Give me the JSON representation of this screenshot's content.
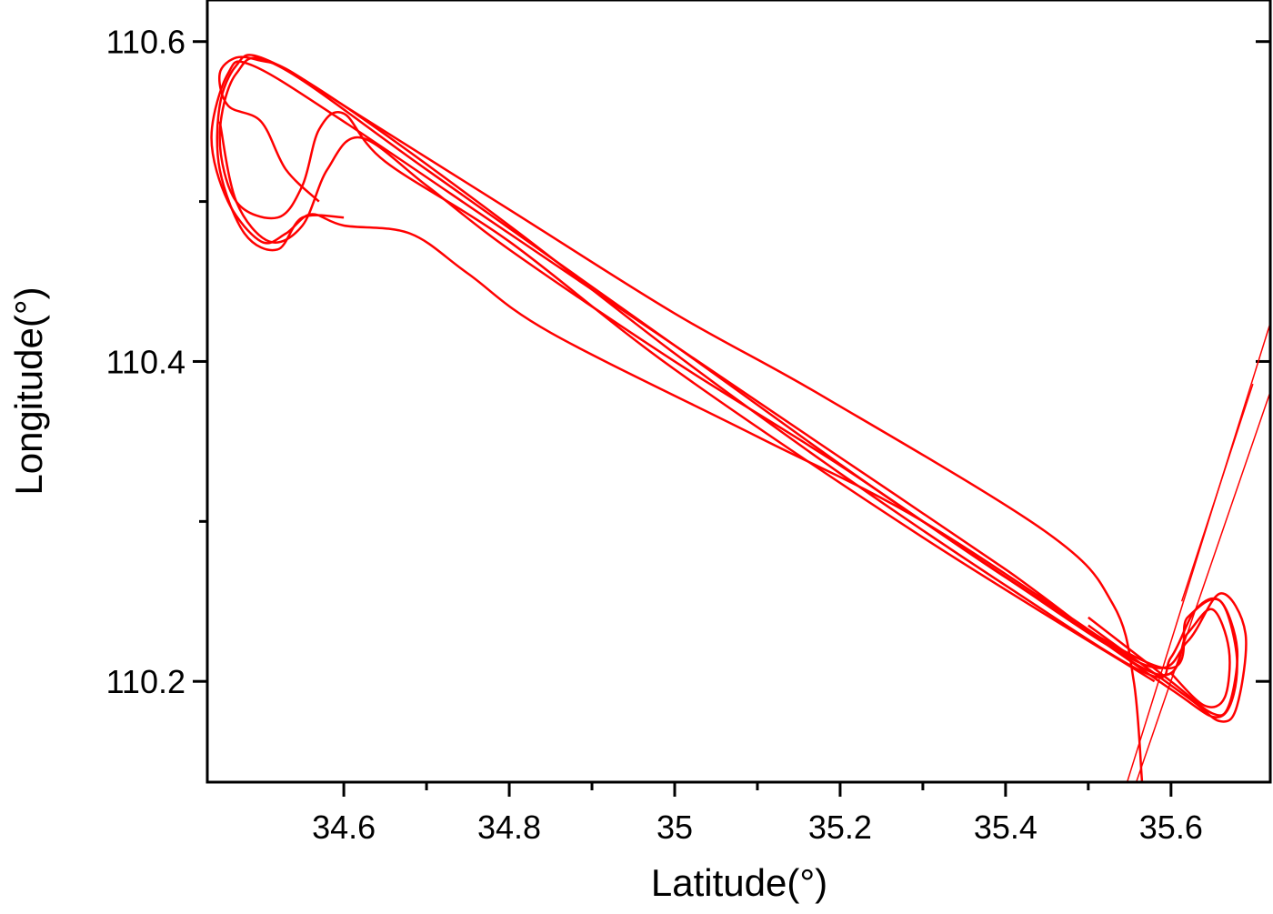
{
  "chart_data": {
    "type": "line",
    "x_label": "Latitude(°)",
    "y_label": "Longitude(°)",
    "xlim": [
      34.435,
      35.72
    ],
    "ylim": [
      110.137,
      110.626
    ],
    "xticks": [
      34.6,
      34.8,
      35.0,
      35.2,
      35.4,
      35.6
    ],
    "yticks": [
      110.2,
      110.4,
      110.6
    ],
    "color": "#ff0000",
    "series": [
      {
        "x": [
          34.57,
          34.53,
          34.5,
          34.46,
          34.45,
          34.47,
          34.5,
          34.53,
          34.6,
          34.8,
          35.0,
          35.18,
          35.45,
          35.53,
          35.555,
          35.565
        ],
        "values": [
          110.5,
          110.52,
          110.55,
          110.56,
          110.58,
          110.59,
          110.588,
          110.583,
          110.56,
          110.495,
          110.43,
          110.378,
          110.293,
          110.248,
          110.2,
          110.137
        ]
      },
      {
        "x": [
          34.6,
          34.55,
          34.52,
          34.48,
          34.45,
          34.45,
          34.47,
          34.5,
          34.6,
          34.8,
          35.0,
          35.2,
          35.4,
          35.57,
          35.6,
          35.63,
          35.66,
          35.68,
          35.67,
          35.65,
          35.6,
          35.5
        ],
        "values": [
          110.49,
          110.49,
          110.47,
          110.48,
          110.52,
          110.56,
          110.585,
          110.59,
          110.56,
          110.485,
          110.405,
          110.33,
          110.26,
          110.205,
          110.215,
          110.245,
          110.25,
          110.22,
          110.185,
          110.18,
          110.2,
          110.24
        ]
      },
      {
        "x": [
          35.58,
          35.3,
          35.0,
          34.8,
          34.65,
          34.6,
          34.57,
          34.55,
          34.52,
          34.47,
          34.45,
          34.47,
          34.52,
          34.7,
          35.0,
          35.3,
          35.58,
          35.62,
          35.66,
          35.68,
          35.66,
          35.6,
          35.45
        ],
        "values": [
          110.2,
          110.29,
          110.395,
          110.475,
          110.525,
          110.555,
          110.545,
          110.51,
          110.49,
          110.5,
          110.54,
          110.58,
          110.585,
          110.52,
          110.41,
          110.3,
          110.21,
          110.24,
          110.25,
          110.21,
          110.178,
          110.195,
          110.25
        ]
      },
      {
        "x": [
          35.55,
          35.3,
          35.1,
          34.85,
          34.75,
          34.68,
          34.6,
          34.56,
          34.53,
          34.5,
          34.46,
          34.44,
          34.46,
          34.49,
          34.6,
          34.8,
          35.0,
          35.2,
          35.4,
          35.58,
          35.62,
          35.65,
          35.67,
          35.665,
          35.64,
          35.6
        ],
        "values": [
          110.215,
          110.3,
          110.353,
          110.418,
          110.455,
          110.48,
          110.485,
          110.492,
          110.48,
          110.475,
          110.5,
          110.54,
          110.58,
          110.585,
          110.55,
          110.48,
          110.41,
          110.34,
          110.27,
          110.205,
          110.23,
          110.245,
          110.22,
          110.19,
          110.185,
          110.205
        ]
      },
      {
        "x": [
          34.45,
          34.47,
          34.51,
          34.55,
          34.58,
          34.62,
          34.7,
          34.8,
          35.0,
          35.2,
          35.4,
          35.57,
          35.62,
          35.66,
          35.69,
          35.68,
          35.66,
          35.62,
          35.5
        ],
        "values": [
          110.55,
          110.5,
          110.475,
          110.485,
          110.52,
          110.54,
          110.51,
          110.47,
          110.4,
          110.335,
          110.265,
          110.21,
          110.225,
          110.255,
          110.23,
          110.185,
          110.175,
          110.19,
          110.235
        ]
      },
      {
        "x": [
          35.547,
          35.72
        ],
        "values": [
          110.137,
          110.424
        ]
      },
      {
        "x": [
          35.558,
          35.72
        ],
        "values": [
          110.137,
          110.381
        ]
      },
      {
        "x": [
          35.613,
          35.699
        ],
        "values": [
          110.25,
          110.386
        ]
      }
    ]
  }
}
